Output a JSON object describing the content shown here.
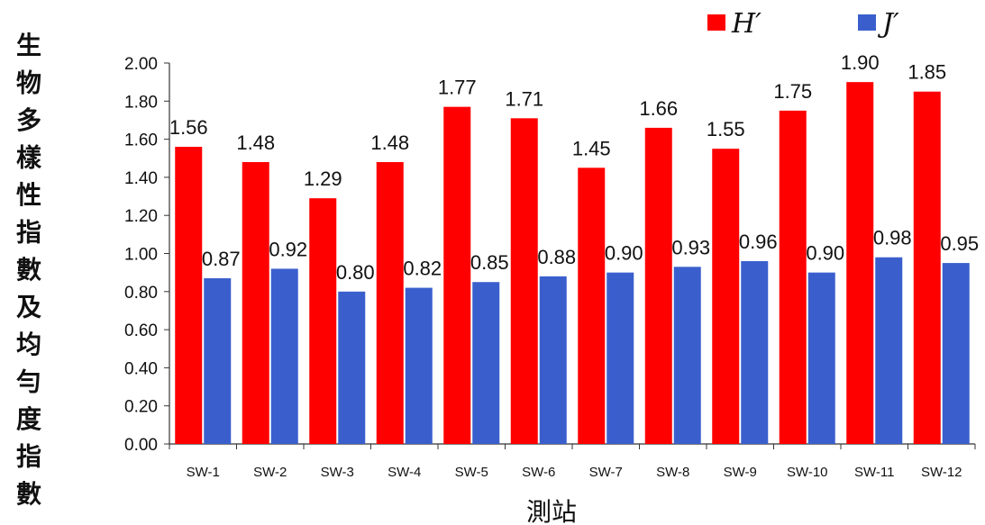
{
  "chart_data": {
    "type": "bar",
    "categories": [
      "SW-1",
      "SW-2",
      "SW-3",
      "SW-4",
      "SW-5",
      "SW-6",
      "SW-7",
      "SW-8",
      "SW-9",
      "SW-10",
      "SW-11",
      "SW-12"
    ],
    "series": [
      {
        "name": "H′",
        "color": "#ff0000",
        "values": [
          1.56,
          1.48,
          1.29,
          1.48,
          1.77,
          1.71,
          1.45,
          1.66,
          1.55,
          1.75,
          1.9,
          1.85
        ]
      },
      {
        "name": "J′",
        "color": "#3a5fcd",
        "values": [
          0.87,
          0.92,
          0.8,
          0.82,
          0.85,
          0.88,
          0.9,
          0.93,
          0.96,
          0.9,
          0.98,
          0.95
        ]
      }
    ],
    "xlabel": "測站",
    "ylabel": "生物多樣性指數及均勻度指數",
    "ylim": [
      0,
      2.0
    ],
    "yticks": [
      "0.00",
      "0.20",
      "0.40",
      "0.60",
      "0.80",
      "1.00",
      "1.20",
      "1.40",
      "1.60",
      "1.80",
      "2.00"
    ],
    "grid": false,
    "legend_position": "top-right",
    "data_labels": true
  }
}
